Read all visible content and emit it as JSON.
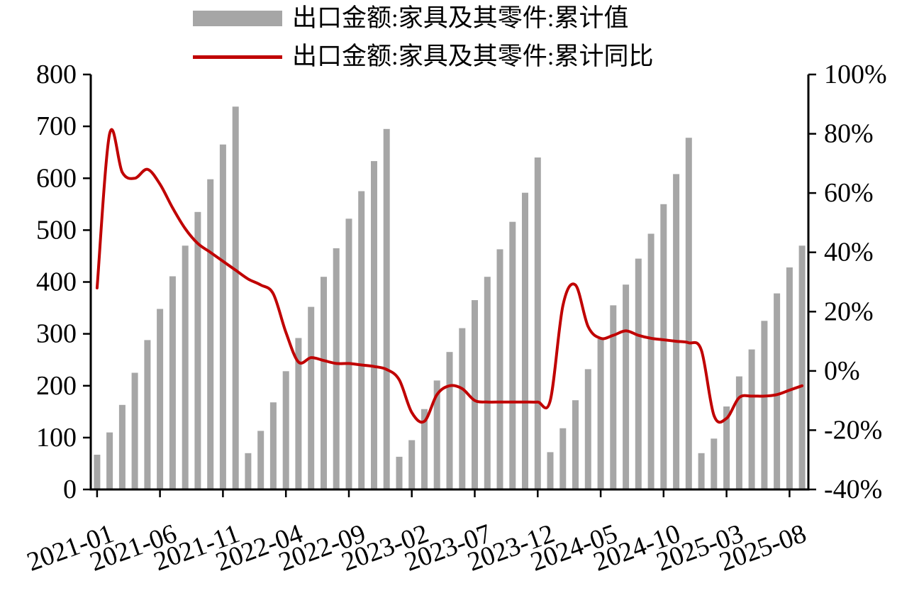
{
  "chart_data": {
    "type": "bar",
    "note": "combo chart: bars on left axis, line on right axis",
    "title": "",
    "x": [
      "2021-01",
      "2021-02",
      "2021-03",
      "2021-04",
      "2021-05",
      "2021-06",
      "2021-07",
      "2021-08",
      "2021-09",
      "2021-10",
      "2021-11",
      "2021-12",
      "2022-01",
      "2022-02",
      "2022-03",
      "2022-04",
      "2022-05",
      "2022-06",
      "2022-07",
      "2022-08",
      "2022-09",
      "2022-10",
      "2022-11",
      "2022-12",
      "2023-01",
      "2023-02",
      "2023-03",
      "2023-04",
      "2023-05",
      "2023-06",
      "2023-07",
      "2023-08",
      "2023-09",
      "2023-10",
      "2023-11",
      "2023-12",
      "2024-01",
      "2024-02",
      "2024-03",
      "2024-04",
      "2024-05",
      "2024-06",
      "2024-07",
      "2024-08",
      "2024-09",
      "2024-10",
      "2024-11",
      "2024-12",
      "2025-01",
      "2025-02",
      "2025-03",
      "2025-04",
      "2025-05",
      "2025-06",
      "2025-07",
      "2025-08",
      "2025-09"
    ],
    "x_tick_labels": [
      "2021-01",
      "2021-06",
      "2021-11",
      "2022-04",
      "2022-09",
      "2023-02",
      "2023-07",
      "2023-12",
      "2024-05",
      "2024-10",
      "2025-03",
      "2025-08"
    ],
    "series": [
      {
        "name": "出口金额:家具及其零件:累计值",
        "type": "bar",
        "axis": "left",
        "color": "#a6a6a6",
        "values": [
          67,
          110,
          163,
          225,
          288,
          348,
          411,
          470,
          535,
          598,
          665,
          738,
          70,
          113,
          168,
          228,
          292,
          352,
          410,
          465,
          522,
          575,
          633,
          695,
          63,
          95,
          155,
          210,
          265,
          311,
          365,
          410,
          463,
          516,
          572,
          640,
          72,
          118,
          172,
          232,
          290,
          355,
          395,
          445,
          493,
          550,
          608,
          678,
          70,
          98,
          160,
          218,
          270,
          325,
          378,
          428,
          470
        ]
      },
      {
        "name": "出口金额:家具及其零件:累计同比",
        "type": "line",
        "axis": "right",
        "color": "#c00000",
        "values": [
          28,
          80,
          67,
          65,
          68,
          63,
          55,
          48,
          43,
          40,
          37,
          34,
          31,
          29,
          26,
          13,
          3,
          4.5,
          3.5,
          2.5,
          2.5,
          2,
          1.5,
          0.5,
          -3,
          -14,
          -17,
          -8,
          -5,
          -6,
          -10,
          -10.5,
          -10.5,
          -10.5,
          -10.5,
          -10.5,
          -10,
          22,
          29,
          15,
          11,
          12,
          13.5,
          12,
          11,
          10.5,
          10,
          9.5,
          7,
          -15,
          -16,
          -9,
          -8.5,
          -8.5,
          -8,
          -6.5,
          -5
        ]
      }
    ],
    "left_axis": {
      "min": 0,
      "max": 800,
      "tick_values": [
        0,
        100,
        200,
        300,
        400,
        500,
        600,
        700,
        800
      ],
      "tick_labels": [
        "0",
        "100",
        "200",
        "300",
        "400",
        "500",
        "600",
        "700",
        "800"
      ]
    },
    "right_axis": {
      "min": -40,
      "max": 100,
      "tick_values": [
        -40,
        -20,
        0,
        20,
        40,
        60,
        80,
        100
      ],
      "tick_labels": [
        "-40%",
        "-20%",
        "0%",
        "20%",
        "40%",
        "60%",
        "80%",
        "100%"
      ]
    },
    "legend_position": "top",
    "grid": false,
    "axis_color": "#000000",
    "text_color": "#000000"
  }
}
